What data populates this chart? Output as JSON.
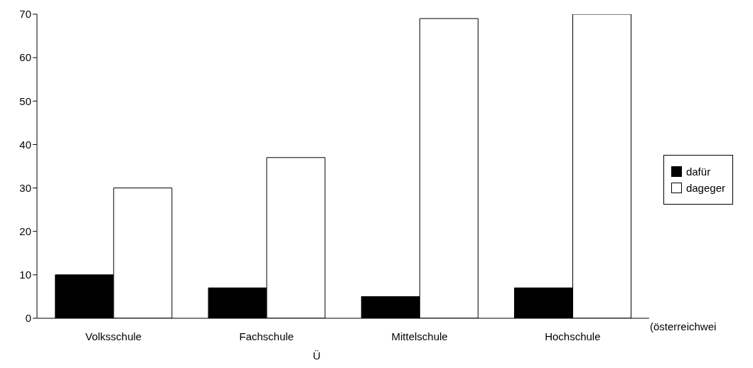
{
  "chart_data": {
    "type": "bar",
    "categories": [
      "Volksschule",
      "Fachschule",
      "Mittelschule",
      "Hochschule"
    ],
    "series": [
      {
        "name": "dafür",
        "color": "#000000",
        "values": [
          10,
          7,
          5,
          7
        ]
      },
      {
        "name": "dageger",
        "color": "#ffffff",
        "values": [
          30,
          37,
          69,
          70
        ]
      }
    ],
    "ylim": [
      0,
      70
    ],
    "yticks": [
      0,
      10,
      20,
      30,
      40,
      50,
      60,
      70
    ],
    "legend": "right",
    "annotations": [
      "(österreichwei",
      "Ü"
    ]
  }
}
